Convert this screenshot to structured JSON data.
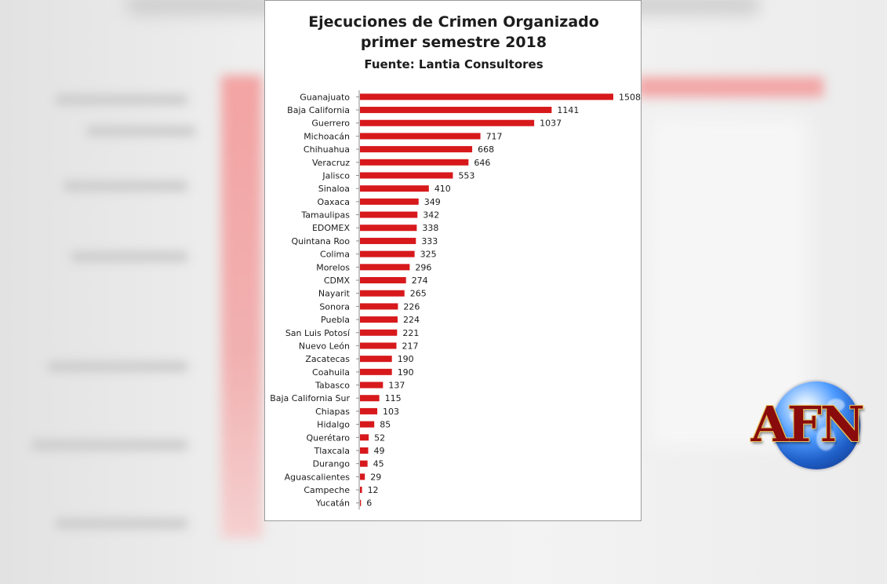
{
  "chart_data": {
    "type": "bar",
    "orientation": "horizontal",
    "title": "Ejecuciones de Crimen Organizado",
    "subtitle": "primer semestre 2018",
    "source": "Fuente: Lantia Consultores",
    "bar_color": "#d7191c",
    "categories": [
      "Guanajuato",
      "Baja California",
      "Guerrero",
      "Michoacán",
      "Chihuahua",
      "Veracruz",
      "Jalisco",
      "Sinaloa",
      "Oaxaca",
      "Tamaulipas",
      "EDOMEX",
      "Quintana Roo",
      "Colima",
      "Morelos",
      "CDMX",
      "Nayarit",
      "Sonora",
      "Puebla",
      "San Luis Potosí",
      "Nuevo León",
      "Zacatecas",
      "Coahuila",
      "Tabasco",
      "Baja California Sur",
      "Chiapas",
      "Hidalgo",
      "Querétaro",
      "Tlaxcala",
      "Durango",
      "Aguascalientes",
      "Campeche",
      "Yucatán"
    ],
    "values": [
      1508,
      1141,
      1037,
      717,
      668,
      646,
      553,
      410,
      349,
      342,
      338,
      333,
      325,
      296,
      274,
      265,
      226,
      224,
      221,
      217,
      190,
      190,
      137,
      115,
      103,
      85,
      52,
      49,
      45,
      29,
      12,
      6
    ],
    "xlim": [
      0,
      1508
    ],
    "grid": false,
    "legend": "none"
  },
  "logo": {
    "text": "AFN"
  }
}
